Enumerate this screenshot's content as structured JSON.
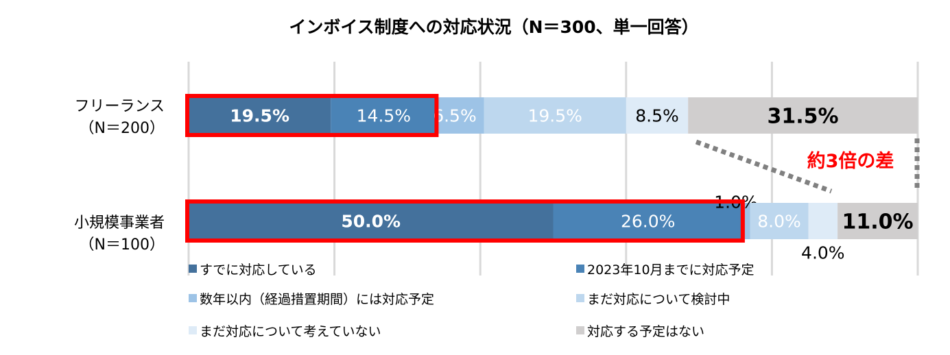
{
  "chart_data": {
    "type": "bar",
    "orientation": "horizontal",
    "stacked": "100%",
    "title": "インボイス制度への対応状況（N＝300、単一回答）",
    "xlim": [
      0,
      100
    ],
    "grid": true,
    "legend_placement": "bottom",
    "categories": [
      {
        "line1": "フリーランス",
        "line2": "（N＝200）"
      },
      {
        "line1": "小規模事業者",
        "line2": "（N＝100）"
      }
    ],
    "series": [
      {
        "name": "すでに対応している",
        "color": "#44719c",
        "values": [
          19.5,
          50.0
        ],
        "labels": [
          "19.5%",
          "50.0%"
        ]
      },
      {
        "name": "2023年10月までに対応予定",
        "color": "#4a83b6",
        "values": [
          14.5,
          26.0
        ],
        "labels": [
          "14.5%",
          "26.0%"
        ]
      },
      {
        "name": "数年以内（経過措置期間）には対応予定",
        "color": "#9dc3e6",
        "values": [
          6.5,
          1.0
        ],
        "labels": [
          "6.5%",
          "1.0%"
        ]
      },
      {
        "name": "まだ対応について検討中",
        "color": "#bdd7ee",
        "values": [
          19.5,
          8.0
        ],
        "labels": [
          "19.5%",
          "8.0%"
        ]
      },
      {
        "name": "まだ対応について考えていない",
        "color": "#deebf7",
        "values": [
          8.5,
          4.0
        ],
        "labels": [
          "8.5%",
          "4.0%"
        ]
      },
      {
        "name": "対応する予定はない",
        "color": "#d0cece",
        "values": [
          31.5,
          11.0
        ],
        "labels": [
          "31.5%",
          "11.0%"
        ]
      }
    ],
    "annotation": {
      "text": "約3倍の差",
      "color": "#ff0000"
    },
    "highlight_color": "#ff0000"
  }
}
